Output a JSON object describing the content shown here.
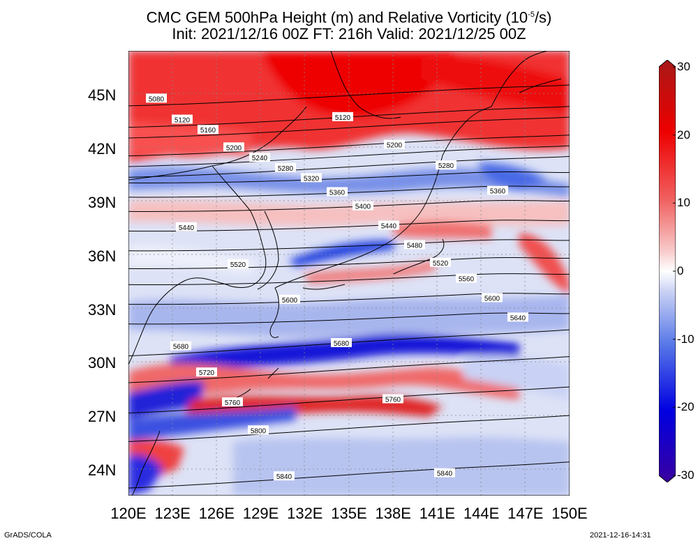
{
  "title_line1": "CMC GEM 500hPa Height (m) and Relative Vorticity (10",
  "title_sup": "-5",
  "title_tail": "/s)",
  "title_line2": "Init: 2021/12/16 00Z  FT: 216h  Valid: 2021/12/25 00Z",
  "lat_labels": [
    "45N",
    "42N",
    "39N",
    "36N",
    "33N",
    "30N",
    "27N",
    "24N"
  ],
  "lon_labels": [
    "120E",
    "123E",
    "126E",
    "129E",
    "132E",
    "135E",
    "138E",
    "141E",
    "144E",
    "147E",
    "150E"
  ],
  "colorbar": {
    "labels": [
      "30",
      "20",
      "10",
      "0",
      "-10",
      "-20",
      "-30"
    ],
    "min": -30,
    "max": 30,
    "colors": [
      "#3a00a0",
      "#0000e0",
      "#5a7ae8",
      "#c8d0f4",
      "#ffffff",
      "#f8c8c8",
      "#f06060",
      "#ee0000",
      "#a81818"
    ]
  },
  "contours": [
    {
      "label": "5080",
      "lat": 45.2
    },
    {
      "label": "5120",
      "lat": 44.0
    },
    {
      "label": "5160",
      "lat": 43.4
    },
    {
      "label": "5200",
      "lat": 42.4
    },
    {
      "label": "5240",
      "lat": 41.8
    },
    {
      "label": "5280",
      "lat": 41.2
    },
    {
      "label": "5320",
      "lat": 40.5
    },
    {
      "label": "5360",
      "lat": 39.7
    },
    {
      "label": "5400",
      "lat": 38.9
    },
    {
      "label": "5440",
      "lat": 37.8
    },
    {
      "label": "5480",
      "lat": 36.7
    },
    {
      "label": "5520",
      "lat": 35.7
    },
    {
      "label": "5560",
      "lat": 34.8
    },
    {
      "label": "5600",
      "lat": 33.7
    },
    {
      "label": "5640",
      "lat": 32.6
    },
    {
      "label": "5680",
      "lat": 31.4
    },
    {
      "label": "5720",
      "lat": 29.9
    },
    {
      "label": "5760",
      "lat": 28.2
    },
    {
      "label": "5800",
      "lat": 26.6
    },
    {
      "label": "5840",
      "lat": 24.0
    }
  ],
  "footer_left": "GrADS/COLA",
  "footer_right": "2021-12-16-14:31"
}
